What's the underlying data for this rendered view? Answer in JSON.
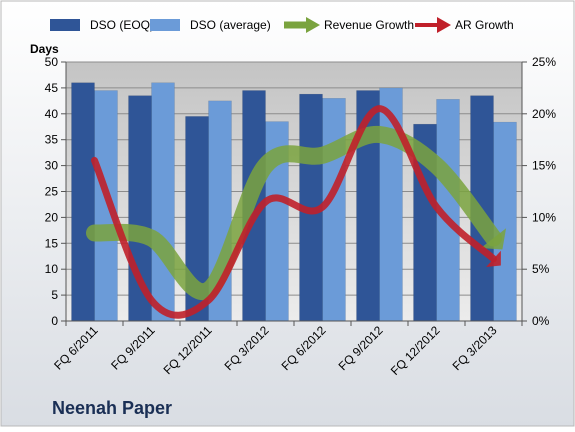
{
  "company": "Neenah Paper",
  "chart_data": {
    "type": "bar",
    "title": "",
    "xlabel": "",
    "ylabel": "Days",
    "ylim": [
      0,
      50
    ],
    "y2lim": [
      0,
      25
    ],
    "y_ticks": [
      "0",
      "5",
      "10",
      "15",
      "20",
      "25",
      "30",
      "35",
      "40",
      "45",
      "50"
    ],
    "y2_ticks": [
      "0%",
      "5%",
      "10%",
      "15%",
      "20%",
      "25%"
    ],
    "categories": [
      "FQ 6/2011",
      "FQ 9/2011",
      "FQ 12/2011",
      "FQ 3/2012",
      "FQ 6/2012",
      "FQ 9/2012",
      "FQ 12/2012",
      "FQ 3/2013"
    ],
    "legend_placement": "top",
    "grid": true,
    "series": [
      {
        "name": "DSO (EOQ)",
        "kind": "bar",
        "axis": "left",
        "color": "#2f5597",
        "values": [
          46.0,
          43.5,
          39.5,
          44.5,
          43.8,
          44.5,
          38.0,
          43.5
        ]
      },
      {
        "name": "DSO (average)",
        "kind": "bar",
        "axis": "left",
        "color": "#6b9bd8",
        "values": [
          44.5,
          46.0,
          42.5,
          38.5,
          43.0,
          45.0,
          42.8,
          38.4
        ]
      },
      {
        "name": "Revenue Growth",
        "kind": "line",
        "axis": "right",
        "unit": "%",
        "color": "#7aa33e",
        "values": [
          8.5,
          8.0,
          3.0,
          15.0,
          16.0,
          18.0,
          15.0,
          8.0
        ]
      },
      {
        "name": "AR Growth",
        "kind": "line",
        "axis": "right",
        "unit": "%",
        "color": "#c0202a",
        "values": [
          15.5,
          2.0,
          2.0,
          11.5,
          11.0,
          20.5,
          11.0,
          6.0
        ]
      }
    ]
  }
}
